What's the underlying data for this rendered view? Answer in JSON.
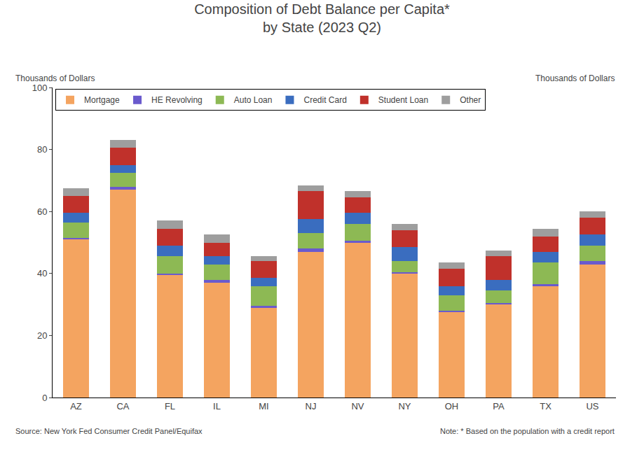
{
  "chart_data": {
    "type": "bar",
    "stacked": true,
    "title": "Composition of Debt Balance per Capita*\nby State (2023 Q2)",
    "ylabel_left": "Thousands of Dollars",
    "ylabel_right": "Thousands of Dollars",
    "source": "Source: New York Fed Consumer Credit Panel/Equifax",
    "note": "Note: * Based on the population with a credit report",
    "categories": [
      "AZ",
      "CA",
      "FL",
      "IL",
      "MI",
      "NJ",
      "NV",
      "NY",
      "OH",
      "PA",
      "TX",
      "US"
    ],
    "series": [
      {
        "name": "Mortgage",
        "color": "#F4A460",
        "values": [
          51.0,
          67.0,
          39.5,
          37.0,
          29.0,
          47.0,
          50.0,
          40.0,
          27.5,
          30.0,
          36.0,
          43.0
        ]
      },
      {
        "name": "HE Revolving",
        "color": "#6A5ACD",
        "values": [
          0.5,
          1.0,
          0.5,
          1.0,
          0.5,
          1.0,
          0.5,
          0.5,
          0.5,
          0.5,
          0.5,
          1.0
        ]
      },
      {
        "name": "Auto Loan",
        "color": "#8DB954",
        "values": [
          5.0,
          4.5,
          5.5,
          5.0,
          6.5,
          5.0,
          5.5,
          3.5,
          5.0,
          4.0,
          7.0,
          5.0
        ]
      },
      {
        "name": "Credit Card",
        "color": "#3A6DBF",
        "values": [
          3.0,
          2.5,
          3.5,
          2.5,
          2.5,
          4.5,
          3.5,
          4.5,
          3.0,
          3.5,
          3.5,
          3.5
        ]
      },
      {
        "name": "Student Loan",
        "color": "#C0312B",
        "values": [
          5.5,
          5.5,
          5.5,
          4.5,
          5.5,
          9.0,
          5.0,
          5.5,
          5.5,
          7.5,
          5.0,
          5.5
        ]
      },
      {
        "name": "Other",
        "color": "#9E9E9E",
        "values": [
          2.5,
          2.5,
          2.5,
          2.5,
          1.5,
          2.0,
          2.0,
          2.0,
          2.0,
          2.0,
          2.5,
          2.0
        ]
      }
    ],
    "ylim": [
      0,
      100
    ],
    "yticks": [
      0,
      20,
      40,
      60,
      80,
      100
    ],
    "grid": false,
    "legend": "upper left"
  }
}
